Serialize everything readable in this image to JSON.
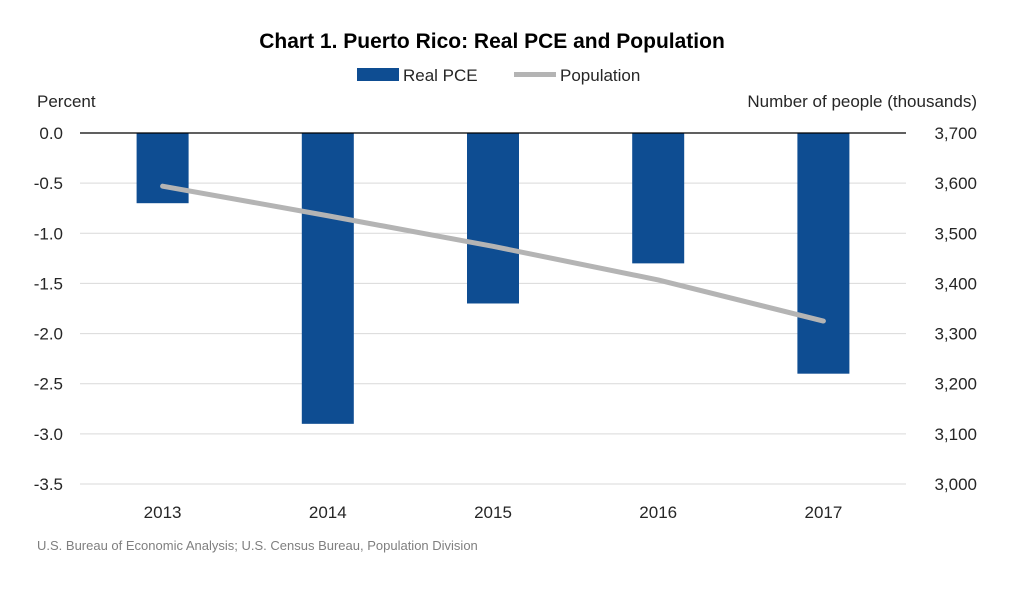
{
  "chart_data": {
    "type": "bar",
    "title": "Chart 1. Puerto Rico: Real PCE and Population",
    "categories": [
      "2013",
      "2014",
      "2015",
      "2016",
      "2017"
    ],
    "series": [
      {
        "name": "Real PCE",
        "type": "bar",
        "axis": "left",
        "color": "#0e4d92",
        "values": [
          -0.7,
          -2.9,
          -1.7,
          -1.3,
          -2.4
        ]
      },
      {
        "name": "Population",
        "type": "line",
        "axis": "right",
        "color": "#b4b4b4",
        "values": [
          3594,
          3535,
          3474,
          3407,
          3325
        ]
      }
    ],
    "ylabel": "Percent",
    "ylabel_right": "Number of people (thousands)",
    "ylim": [
      -3.5,
      0.0
    ],
    "ylim_right": [
      3000,
      3700
    ],
    "yticks": [
      "0.0",
      "-0.5",
      "-1.0",
      "-1.5",
      "-2.0",
      "-2.5",
      "-3.0",
      "-3.5"
    ],
    "yticks_right": [
      "3,700",
      "3,600",
      "3,500",
      "3,400",
      "3,300",
      "3,200",
      "3,100",
      "3,000"
    ],
    "grid": true,
    "legend": "top-center",
    "source": "U.S. Bureau of Economic Analysis; U.S. Census Bureau, Population Division"
  }
}
